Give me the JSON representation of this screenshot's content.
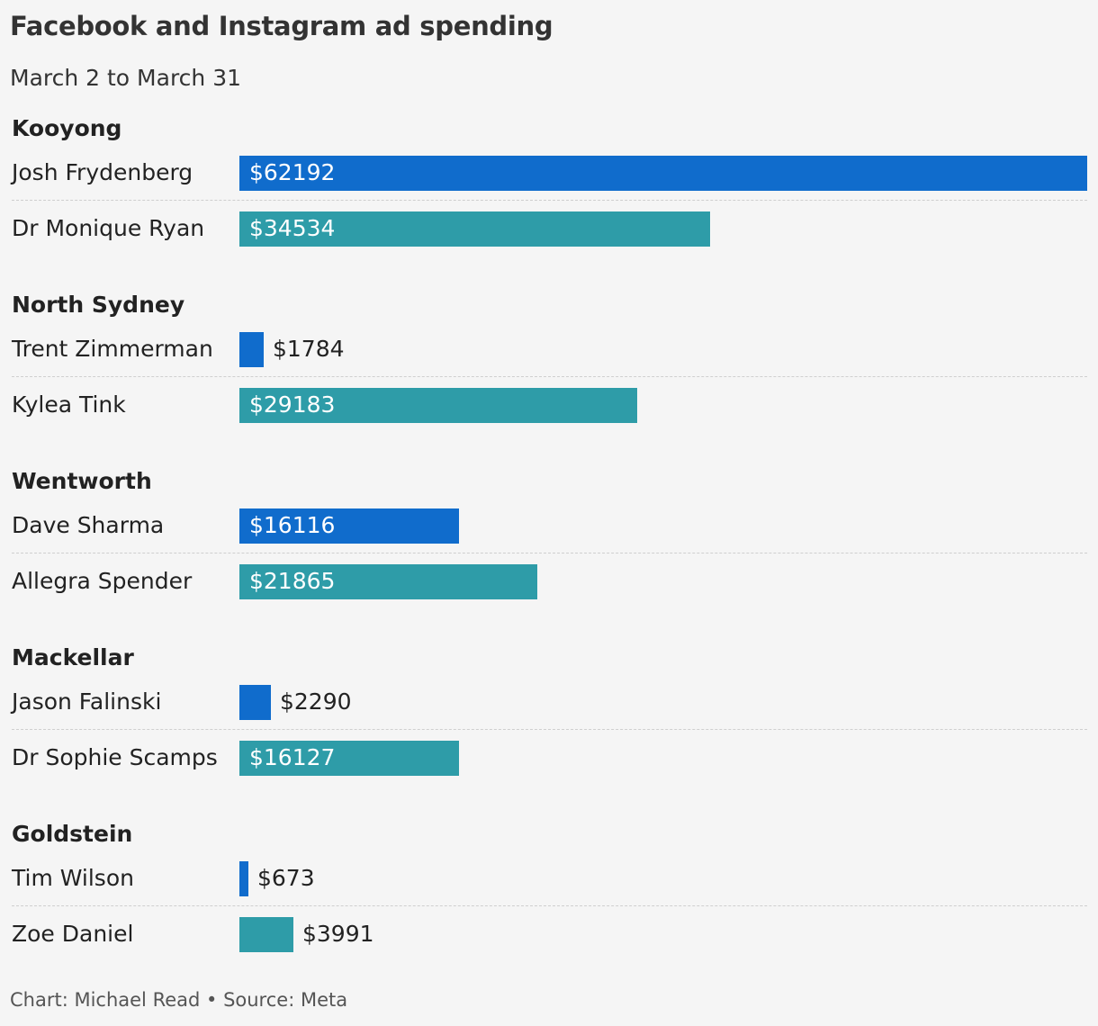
{
  "title": "Facebook and Instagram ad spending",
  "subtitle": "March 2 to March 31",
  "footer": "Chart: Michael Read • Source: Meta",
  "colors": {
    "incumbent": "#106ccc",
    "independent": "#2e9ca8"
  },
  "chart_data": {
    "type": "bar",
    "orientation": "horizontal",
    "value_prefix": "$",
    "groups": [
      {
        "name": "Kooyong",
        "rows": [
          {
            "label": "Josh Frydenberg",
            "value": 62192,
            "display": "$62192",
            "color": "incumbent"
          },
          {
            "label": "Dr Monique Ryan",
            "value": 34534,
            "display": "$34534",
            "color": "independent"
          }
        ]
      },
      {
        "name": "North Sydney",
        "rows": [
          {
            "label": "Trent Zimmerman",
            "value": 1784,
            "display": "$1784",
            "color": "incumbent"
          },
          {
            "label": "Kylea Tink",
            "value": 29183,
            "display": "$29183",
            "color": "independent"
          }
        ]
      },
      {
        "name": "Wentworth",
        "rows": [
          {
            "label": "Dave Sharma",
            "value": 16116,
            "display": "$16116",
            "color": "incumbent"
          },
          {
            "label": "Allegra Spender",
            "value": 21865,
            "display": "$21865",
            "color": "independent"
          }
        ]
      },
      {
        "name": "Mackellar",
        "rows": [
          {
            "label": "Jason Falinski",
            "value": 2290,
            "display": "$2290",
            "color": "incumbent"
          },
          {
            "label": "Dr Sophie Scamps",
            "value": 16127,
            "display": "$16127",
            "color": "independent"
          }
        ]
      },
      {
        "name": "Goldstein",
        "rows": [
          {
            "label": "Tim Wilson",
            "value": 673,
            "display": "$673",
            "color": "incumbent"
          },
          {
            "label": "Zoe Daniel",
            "value": 3991,
            "display": "$3991",
            "color": "independent"
          }
        ]
      }
    ]
  }
}
